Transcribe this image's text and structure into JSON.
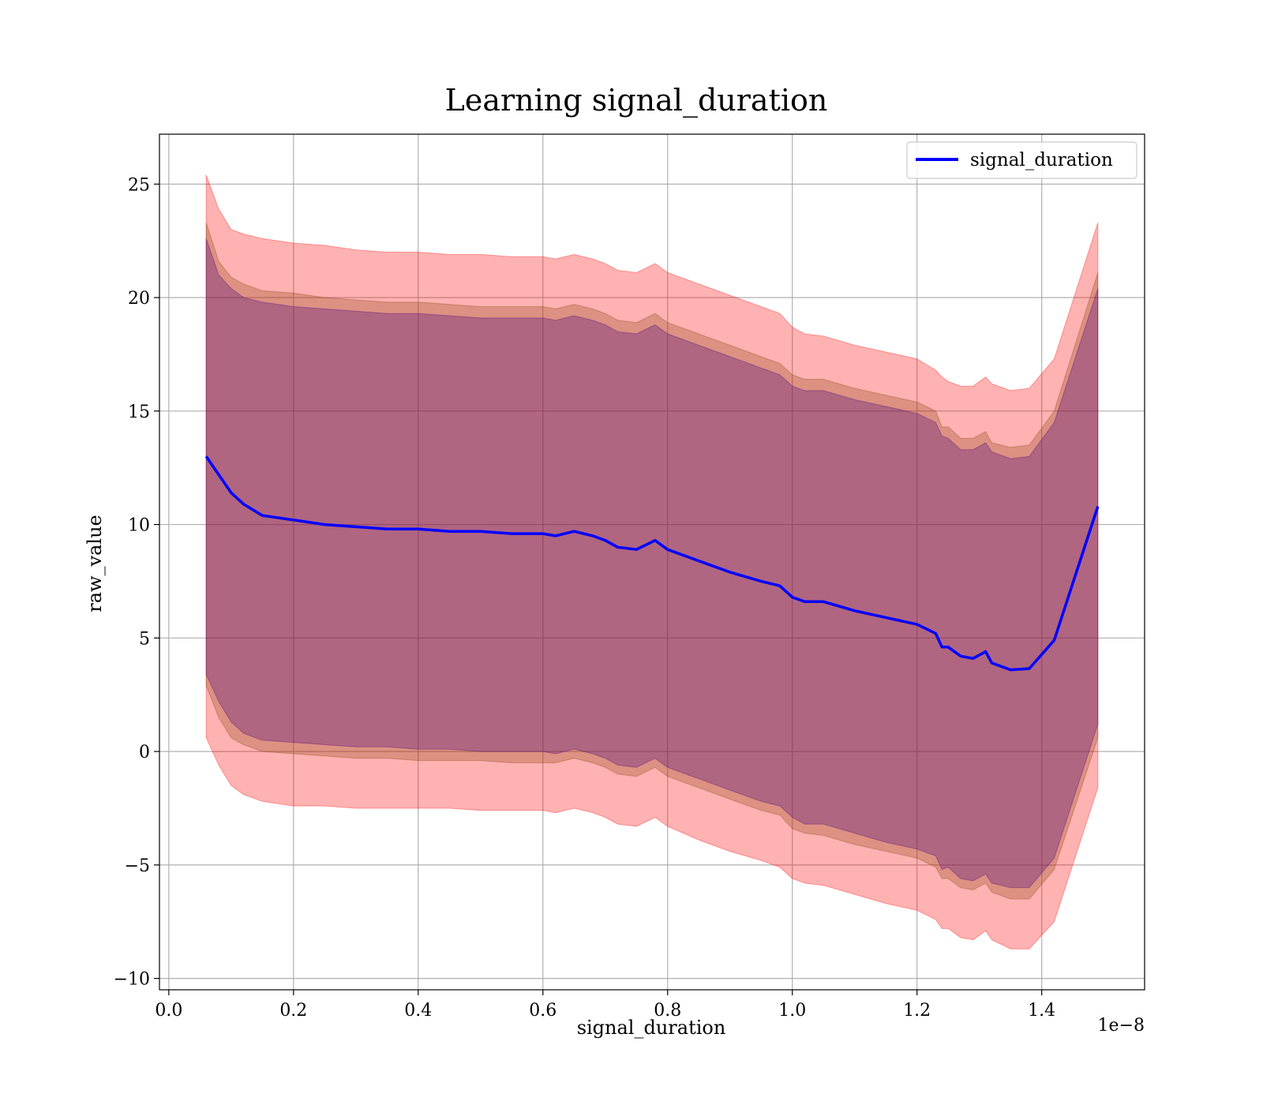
{
  "chart_data": {
    "type": "area",
    "title": "Learning signal_duration",
    "xlabel": "signal_duration",
    "ylabel": "raw_value",
    "x_offset_text": "1e−8",
    "xlim": [
      -0.015,
      1.565
    ],
    "ylim": [
      -10.5,
      27.2
    ],
    "x_ticks": [
      0.0,
      0.2,
      0.4,
      0.6,
      0.8,
      1.0,
      1.2,
      1.4
    ],
    "x_tick_labels": [
      "0.0",
      "0.2",
      "0.4",
      "0.6",
      "0.8",
      "1.0",
      "1.2",
      "1.4"
    ],
    "y_ticks": [
      -10,
      -5,
      0,
      5,
      10,
      15,
      20,
      25
    ],
    "y_tick_labels": [
      "−10",
      "−5",
      "0",
      "5",
      "10",
      "15",
      "20",
      "25"
    ],
    "grid": true,
    "legend": {
      "placement": "top-right",
      "entries": [
        "signal_duration"
      ]
    },
    "colors": {
      "line": "#0000ff",
      "band_3sd": "#ff0000",
      "band_2sd": "#8b4513",
      "band_1sd": "#4b0082"
    },
    "series": [
      {
        "name": "signal_duration",
        "x": [
          0.06,
          0.08,
          0.1,
          0.12,
          0.15,
          0.2,
          0.25,
          0.3,
          0.35,
          0.4,
          0.45,
          0.5,
          0.55,
          0.6,
          0.62,
          0.65,
          0.68,
          0.7,
          0.72,
          0.75,
          0.78,
          0.8,
          0.85,
          0.9,
          0.95,
          0.98,
          1.0,
          1.02,
          1.05,
          1.1,
          1.15,
          1.2,
          1.23,
          1.24,
          1.25,
          1.27,
          1.29,
          1.31,
          1.32,
          1.35,
          1.38,
          1.42,
          1.49
        ],
        "y": [
          13.0,
          12.2,
          11.4,
          10.9,
          10.4,
          10.2,
          10.0,
          9.9,
          9.8,
          9.8,
          9.7,
          9.7,
          9.6,
          9.6,
          9.5,
          9.7,
          9.5,
          9.3,
          9.0,
          8.9,
          9.3,
          8.9,
          8.4,
          7.9,
          7.5,
          7.3,
          6.8,
          6.6,
          6.6,
          6.2,
          5.9,
          5.6,
          5.2,
          4.6,
          4.6,
          4.2,
          4.1,
          4.4,
          3.9,
          3.6,
          3.65,
          4.9,
          10.8
        ]
      }
    ],
    "bands": [
      {
        "level": "3sd",
        "upper": [
          25.4,
          23.9,
          23.0,
          22.8,
          22.6,
          22.4,
          22.3,
          22.1,
          22.0,
          22.0,
          21.9,
          21.9,
          21.8,
          21.8,
          21.7,
          21.9,
          21.7,
          21.5,
          21.2,
          21.1,
          21.5,
          21.1,
          20.6,
          20.1,
          19.6,
          19.3,
          18.7,
          18.4,
          18.3,
          17.9,
          17.6,
          17.3,
          16.8,
          16.5,
          16.3,
          16.1,
          16.1,
          16.5,
          16.2,
          15.9,
          16.0,
          17.3,
          23.3
        ],
        "lower": [
          0.6,
          -0.6,
          -1.5,
          -1.9,
          -2.2,
          -2.4,
          -2.4,
          -2.5,
          -2.5,
          -2.5,
          -2.5,
          -2.6,
          -2.6,
          -2.6,
          -2.7,
          -2.5,
          -2.7,
          -2.9,
          -3.2,
          -3.3,
          -2.9,
          -3.3,
          -3.9,
          -4.4,
          -4.8,
          -5.1,
          -5.6,
          -5.8,
          -5.9,
          -6.3,
          -6.7,
          -7.0,
          -7.4,
          -7.8,
          -7.8,
          -8.2,
          -8.3,
          -7.9,
          -8.3,
          -8.7,
          -8.7,
          -7.5,
          -1.6
        ]
      },
      {
        "level": "2sd",
        "upper": [
          23.3,
          21.6,
          20.9,
          20.6,
          20.3,
          20.2,
          20.0,
          19.9,
          19.8,
          19.8,
          19.7,
          19.6,
          19.6,
          19.6,
          19.5,
          19.7,
          19.5,
          19.3,
          19.0,
          18.9,
          19.3,
          18.9,
          18.4,
          17.9,
          17.4,
          17.1,
          16.6,
          16.4,
          16.4,
          16.0,
          15.7,
          15.4,
          15.0,
          14.3,
          14.3,
          13.8,
          13.8,
          14.1,
          13.6,
          13.4,
          13.5,
          15.0,
          21.1
        ],
        "lower": [
          2.9,
          1.5,
          0.6,
          0.3,
          0.0,
          -0.1,
          -0.2,
          -0.3,
          -0.3,
          -0.4,
          -0.4,
          -0.4,
          -0.5,
          -0.5,
          -0.5,
          -0.3,
          -0.5,
          -0.7,
          -1.0,
          -1.1,
          -0.7,
          -1.1,
          -1.6,
          -2.1,
          -2.6,
          -2.8,
          -3.4,
          -3.6,
          -3.7,
          -4.1,
          -4.4,
          -4.7,
          -5.1,
          -5.6,
          -5.6,
          -6.0,
          -6.1,
          -5.8,
          -6.2,
          -6.5,
          -6.5,
          -5.2,
          0.6
        ]
      },
      {
        "level": "1sd",
        "upper": [
          22.6,
          21.0,
          20.4,
          20.0,
          19.8,
          19.6,
          19.5,
          19.4,
          19.3,
          19.3,
          19.2,
          19.1,
          19.1,
          19.1,
          19.0,
          19.2,
          19.0,
          18.8,
          18.5,
          18.4,
          18.8,
          18.4,
          17.9,
          17.4,
          16.9,
          16.6,
          16.1,
          15.9,
          15.9,
          15.5,
          15.2,
          14.9,
          14.5,
          13.9,
          13.8,
          13.3,
          13.3,
          13.6,
          13.2,
          12.9,
          13.0,
          14.5,
          20.4
        ],
        "lower": [
          3.4,
          2.2,
          1.3,
          0.8,
          0.5,
          0.4,
          0.3,
          0.2,
          0.2,
          0.1,
          0.1,
          0.0,
          0.0,
          0.0,
          -0.1,
          0.1,
          -0.1,
          -0.3,
          -0.6,
          -0.7,
          -0.3,
          -0.7,
          -1.2,
          -1.7,
          -2.2,
          -2.4,
          -2.9,
          -3.2,
          -3.2,
          -3.6,
          -4.0,
          -4.3,
          -4.6,
          -5.2,
          -5.1,
          -5.6,
          -5.7,
          -5.4,
          -5.8,
          -6.0,
          -6.0,
          -4.7,
          1.2
        ]
      }
    ]
  }
}
